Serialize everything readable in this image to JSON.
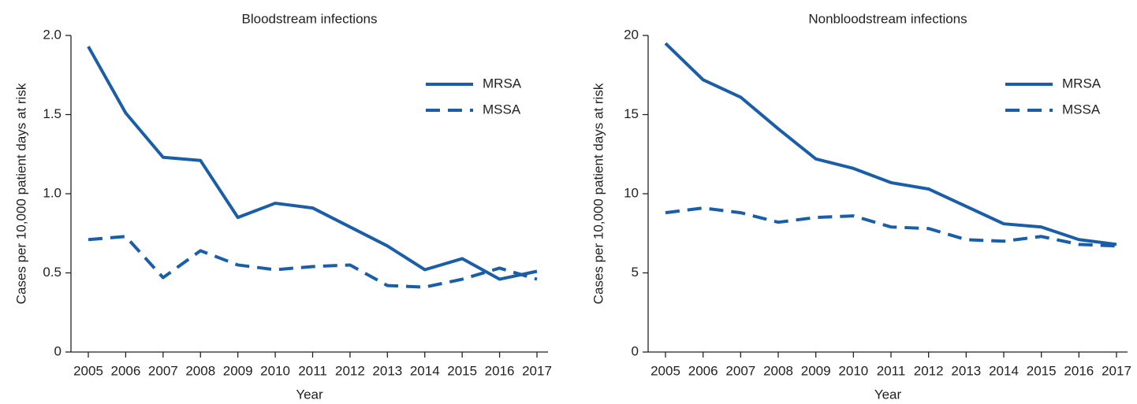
{
  "chart_data": [
    {
      "type": "line",
      "title": "Bloodstream infections",
      "x_label": "Year",
      "y_label": "Cases per 10,000 patient days at risk",
      "categories": [
        "2005",
        "2006",
        "2007",
        "2008",
        "2009",
        "2010",
        "2011",
        "2012",
        "2013",
        "2014",
        "2015",
        "2016",
        "2017"
      ],
      "series": [
        {
          "name": "MRSA",
          "color": "#1a5ea8",
          "style": "solid",
          "values": [
            1.93,
            1.51,
            1.23,
            1.21,
            0.85,
            0.94,
            0.91,
            0.79,
            0.67,
            0.52,
            0.59,
            0.46,
            0.51
          ]
        },
        {
          "name": "MSSA",
          "color": "#1a5ea8",
          "style": "dashed",
          "values": [
            0.71,
            0.73,
            0.47,
            0.64,
            0.55,
            0.52,
            0.54,
            0.55,
            0.42,
            0.41,
            0.46,
            0.53,
            0.46
          ]
        }
      ],
      "ylim": [
        0,
        2
      ],
      "yticks": [
        0,
        0.5,
        {
          "value": 1,
          "label": "1.0"
        },
        1.5,
        {
          "value": 2,
          "label": "2.0"
        }
      ],
      "grid": false,
      "legend": "upper right"
    },
    {
      "type": "line",
      "title": "Nonbloodstream infections",
      "x_label": "Year",
      "y_label": "Cases per 10,000 patient days at risk",
      "categories": [
        "2005",
        "2006",
        "2007",
        "2008",
        "2009",
        "2010",
        "2011",
        "2012",
        "2013",
        "2014",
        "2015",
        "2016",
        "2017"
      ],
      "series": [
        {
          "name": "MRSA",
          "color": "#1a5ea8",
          "style": "solid",
          "values": [
            19.5,
            17.2,
            16.1,
            14.1,
            12.2,
            11.6,
            10.7,
            10.3,
            9.2,
            8.1,
            7.9,
            7.1,
            6.8
          ]
        },
        {
          "name": "MSSA",
          "color": "#1a5ea8",
          "style": "dashed",
          "values": [
            8.8,
            9.1,
            8.8,
            8.2,
            8.5,
            8.6,
            7.9,
            7.8,
            7.1,
            7.0,
            7.3,
            6.8,
            6.7
          ]
        }
      ],
      "ylim": [
        0,
        20
      ],
      "yticks": [
        0,
        5,
        10,
        15,
        20
      ],
      "grid": false,
      "legend": "upper right"
    }
  ]
}
